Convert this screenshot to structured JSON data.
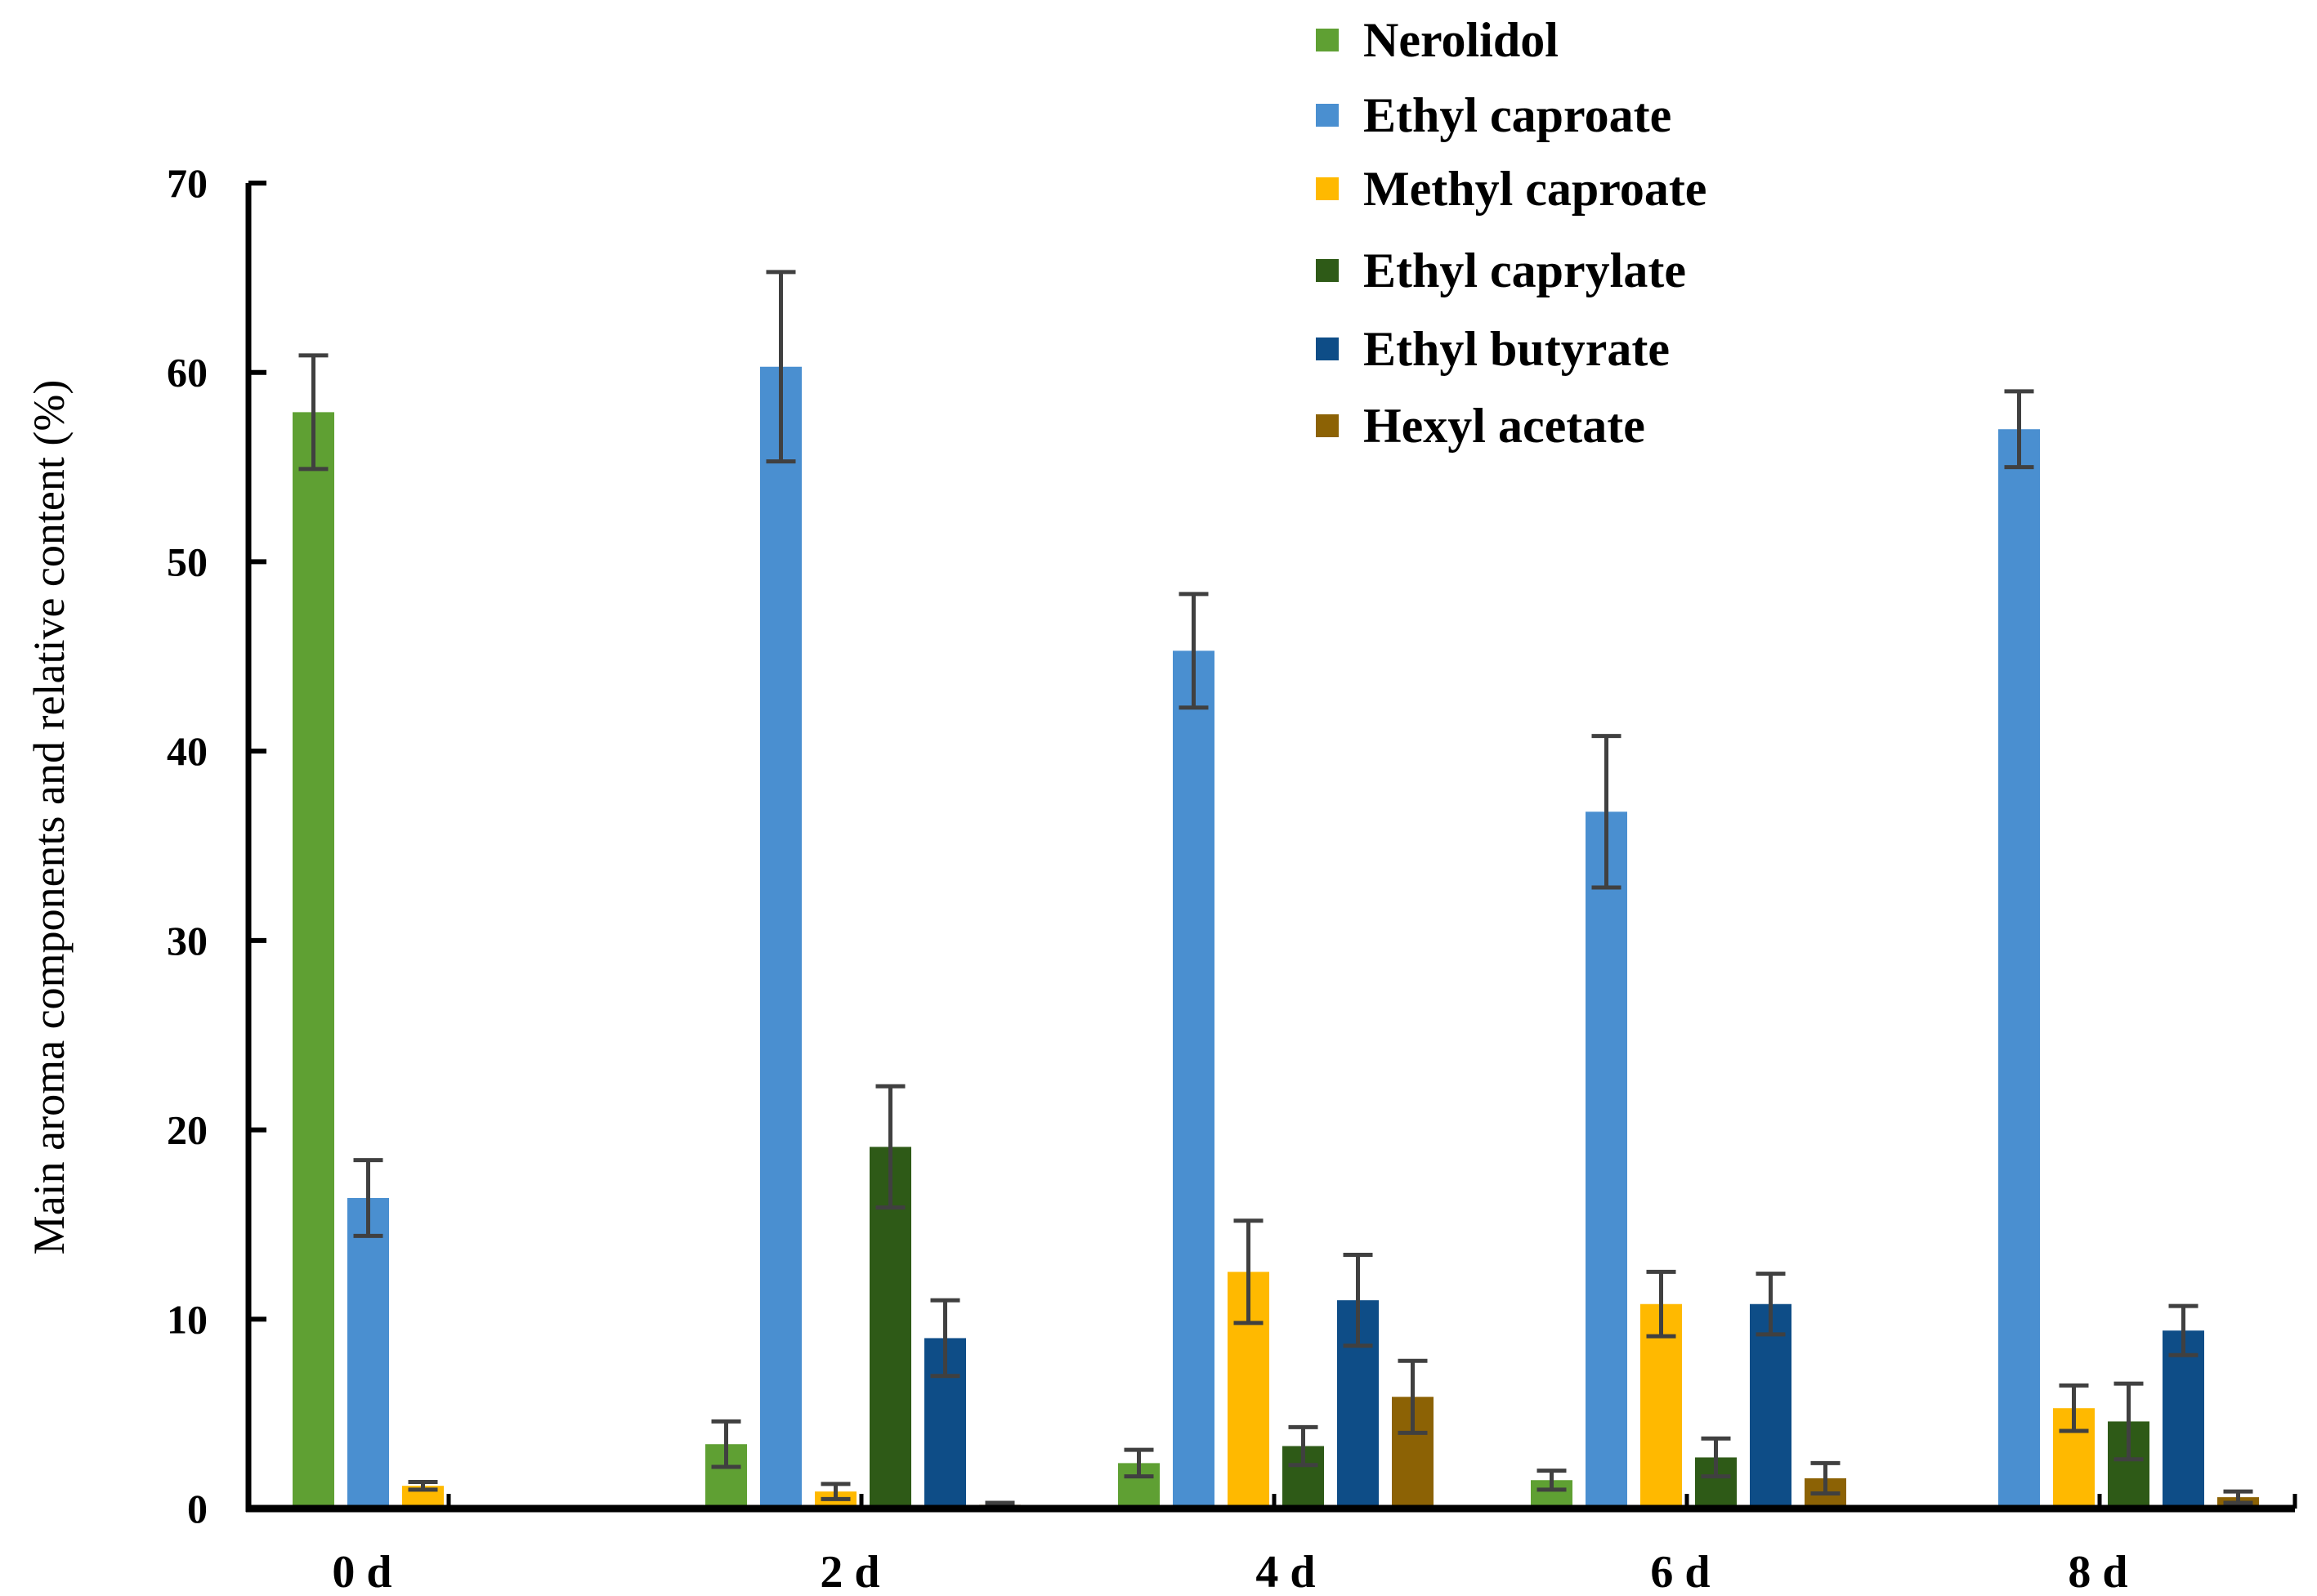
{
  "chart_data": {
    "type": "bar",
    "title": "",
    "xlabel": "",
    "ylabel": "Main aroma components and relative content (%)",
    "ylim": [
      0,
      70
    ],
    "yticks": [
      0,
      10,
      20,
      30,
      40,
      50,
      60,
      70
    ],
    "grid": false,
    "legend_position": "top-right",
    "categories": [
      "0 d",
      "2 d",
      "4 d",
      "6 d",
      "8 d"
    ],
    "series": [
      {
        "name": "Nerolidol",
        "color": "#5fa033",
        "values": [
          57.9,
          3.4,
          2.4,
          1.5,
          0.1
        ],
        "errors": [
          3.0,
          1.2,
          0.7,
          0.5,
          0.0
        ]
      },
      {
        "name": "Ethyl caproate",
        "color": "#4a8fd0",
        "values": [
          16.4,
          60.3,
          45.3,
          36.8,
          57.0
        ],
        "errors": [
          2.0,
          5.0,
          3.0,
          4.0,
          2.0
        ]
      },
      {
        "name": "Methyl caproate",
        "color": "#ffb900",
        "values": [
          1.2,
          0.9,
          12.5,
          10.8,
          5.3
        ],
        "errors": [
          0.2,
          0.4,
          2.7,
          1.7,
          1.2
        ]
      },
      {
        "name": "Ethyl caprylate",
        "color": "#2e5a17",
        "values": [
          0,
          19.1,
          3.3,
          2.7,
          4.6
        ],
        "errors": [
          0,
          3.2,
          1.0,
          1.0,
          2.0
        ]
      },
      {
        "name": "Ethyl butyrate",
        "color": "#0e4d87",
        "values": [
          0,
          9.0,
          11.0,
          10.8,
          9.4
        ],
        "errors": [
          0,
          2.0,
          2.4,
          1.6,
          1.3
        ]
      },
      {
        "name": "Hexyl acetate",
        "color": "#8c6205",
        "values": [
          0,
          0.2,
          5.9,
          1.6,
          0.6
        ],
        "errors": [
          0,
          0.1,
          1.9,
          0.8,
          0.3
        ]
      }
    ],
    "error_bar_color": "#404040"
  }
}
